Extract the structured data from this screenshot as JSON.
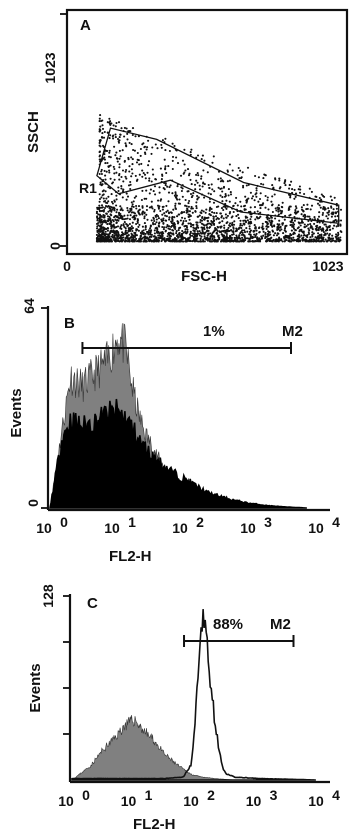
{
  "chart_data": [
    {
      "panel": "A",
      "type": "scatter",
      "xlabel": "FSC-H",
      "ylabel": "SSCH",
      "xlim": [
        0,
        1023
      ],
      "ylim": [
        0,
        1023
      ],
      "x_ticks": [
        "0",
        "1023"
      ],
      "y_ticks": [
        "0",
        "1023"
      ],
      "gate": {
        "name": "R1",
        "polygon": [
          [
            110,
            310
          ],
          [
            160,
            520
          ],
          [
            330,
            470
          ],
          [
            650,
            280
          ],
          [
            1000,
            180
          ],
          [
            1000,
            100
          ],
          [
            640,
            150
          ],
          [
            380,
            290
          ],
          [
            190,
            230
          ]
        ]
      },
      "point_color": "#111111"
    },
    {
      "panel": "B",
      "type": "area",
      "xlabel": "FL2-H",
      "ylabel": "Events",
      "x_scale": "log",
      "xlim": [
        1,
        10000
      ],
      "ylim": [
        0,
        64
      ],
      "y_ticks": [
        "0",
        "64"
      ],
      "x_tick_labels": [
        {
          "base": "10",
          "exp": "0"
        },
        {
          "base": "10",
          "exp": "1"
        },
        {
          "base": "10",
          "exp": "2"
        },
        {
          "base": "10",
          "exp": "3"
        },
        {
          "base": "10",
          "exp": "4"
        }
      ],
      "marker": {
        "label": "M2",
        "percent": "1%",
        "range": [
          3,
          3500
        ]
      },
      "series": [
        {
          "fill": "#808080",
          "x": [
            1,
            1.5,
            2,
            3,
            5,
            7,
            10,
            13,
            16,
            20,
            25,
            35,
            50,
            70,
            100,
            150,
            250,
            500,
            1000
          ],
          "y": [
            0,
            25,
            42,
            39,
            44,
            47,
            55,
            51,
            39,
            30,
            24,
            18,
            12,
            8,
            5,
            2,
            1,
            0.2,
            0
          ]
        },
        {
          "fill": "#000000",
          "x": [
            1,
            1.5,
            2,
            3,
            5,
            7,
            10,
            15,
            20,
            30,
            50,
            80,
            120,
            200,
            400,
            800,
            1500,
            3000,
            6000
          ],
          "y": [
            0,
            22,
            28,
            26,
            28,
            30,
            31,
            27,
            22,
            17,
            13,
            10,
            8,
            5,
            3,
            1.6,
            0.8,
            0.3,
            0
          ]
        }
      ]
    },
    {
      "panel": "C",
      "type": "area",
      "xlabel": "FL2-H",
      "ylabel": "Events",
      "x_scale": "log",
      "xlim": [
        1,
        10000
      ],
      "ylim": [
        0,
        128
      ],
      "y_ticks": [
        "128"
      ],
      "x_tick_labels": [
        {
          "base": "10",
          "exp": "0"
        },
        {
          "base": "10",
          "exp": "1"
        },
        {
          "base": "10",
          "exp": "2"
        },
        {
          "base": "10",
          "exp": "3"
        },
        {
          "base": "10",
          "exp": "4"
        }
      ],
      "marker": {
        "label": "M2",
        "percent": "88%",
        "range": [
          62,
          3500
        ]
      },
      "series": [
        {
          "fill": "#808080",
          "x": [
            1,
            2,
            3,
            5,
            7,
            10,
            13,
            20,
            30,
            50,
            80,
            120,
            200,
            400
          ],
          "y": [
            0,
            10,
            20,
            30,
            38,
            42,
            36,
            28,
            18,
            10,
            4,
            2,
            1,
            0
          ]
        },
        {
          "fill": "none",
          "x": [
            1,
            30,
            60,
            80,
            95,
            110,
            125,
            140,
            160,
            200,
            250,
            300,
            400,
            1000,
            3000,
            8000
          ],
          "y": [
            1,
            1,
            2,
            10,
            45,
            98,
            108,
            103,
            75,
            35,
            10,
            4,
            2,
            1,
            0.5,
            0
          ]
        }
      ]
    }
  ]
}
